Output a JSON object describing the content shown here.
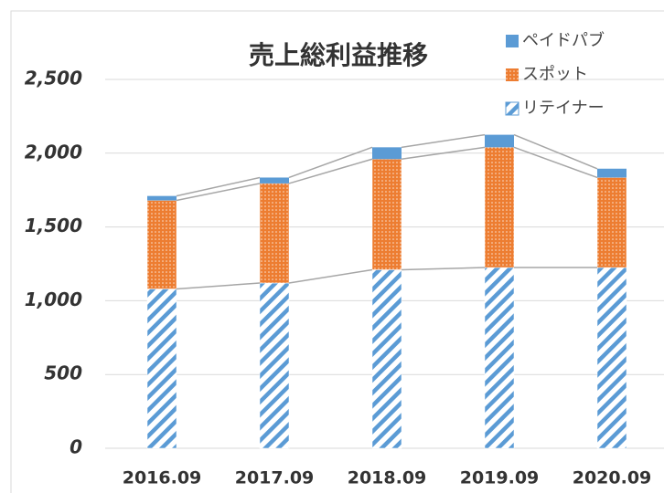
{
  "chart_data": {
    "type": "stacked_bar",
    "title": "売上総利益推移",
    "categories": [
      "2016.09",
      "2017.09",
      "2018.09",
      "2019.09",
      "2020.09"
    ],
    "series": [
      {
        "name": "リテイナー",
        "color": "#5b9bd5",
        "fill": "hatch",
        "values": [
          1080,
          1120,
          1210,
          1225,
          1225
        ]
      },
      {
        "name": "スポット",
        "color": "#ed7d31",
        "fill": "dots",
        "values": [
          600,
          675,
          750,
          815,
          610
        ]
      },
      {
        "name": "ペイドパブ",
        "color": "#5b9bd5",
        "fill": "solid",
        "values": [
          30,
          40,
          80,
          85,
          60
        ]
      }
    ],
    "ylim": [
      0,
      2500
    ],
    "yticks": [
      0,
      500,
      {
        "value": 1000,
        "label": "1,000"
      },
      {
        "value": 1500,
        "label": "1,500"
      },
      {
        "value": 2000,
        "label": "2,000"
      },
      {
        "value": 2500,
        "label": "2,500"
      }
    ],
    "grid": true,
    "series_lines": true,
    "legend": "top-right"
  }
}
